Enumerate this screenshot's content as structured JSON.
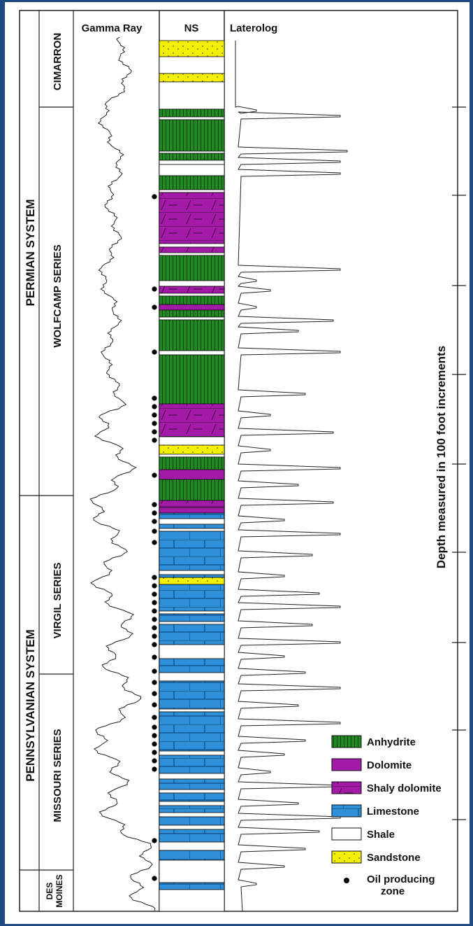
{
  "headers": {
    "gamma_ray": "Gamma Ray",
    "ns": "NS",
    "laterolog": "Laterolog"
  },
  "systems": {
    "permian": "PERMIAN SYSTEM",
    "pennsylvanian": "PENNSYLVANIAN SYSTEM"
  },
  "series": {
    "cimarron": "CIMARRON",
    "wolfcamp": "WOLFCAMP SERIES",
    "virgil": "VIRGIL SERIES",
    "missouri": "MISSOURI SERIES",
    "des": "DES",
    "moines": "MOINES"
  },
  "depth_label": "Depth measured in 100 foot increments",
  "legend": {
    "anhydrite": "Anhydrite",
    "dolomite": "Dolomite",
    "shaly_dolomite": "Shaly dolomite",
    "limestone": "Limestone",
    "shale": "Shale",
    "sandstone": "Sandstone",
    "oil_line1": "Oil producing",
    "oil_line2": "zone"
  },
  "colors": {
    "anhydrite": "#1f8a1f",
    "dolomite": "#a21aa5",
    "limestone": "#2f8fd8",
    "sandstone": "#f4f000",
    "shale": "#ffffff",
    "background": "#1f4a80"
  },
  "lithology_units": [
    "anhydrite",
    "dolomite",
    "shaly-dolomite",
    "limestone",
    "shale",
    "sandstone"
  ]
}
